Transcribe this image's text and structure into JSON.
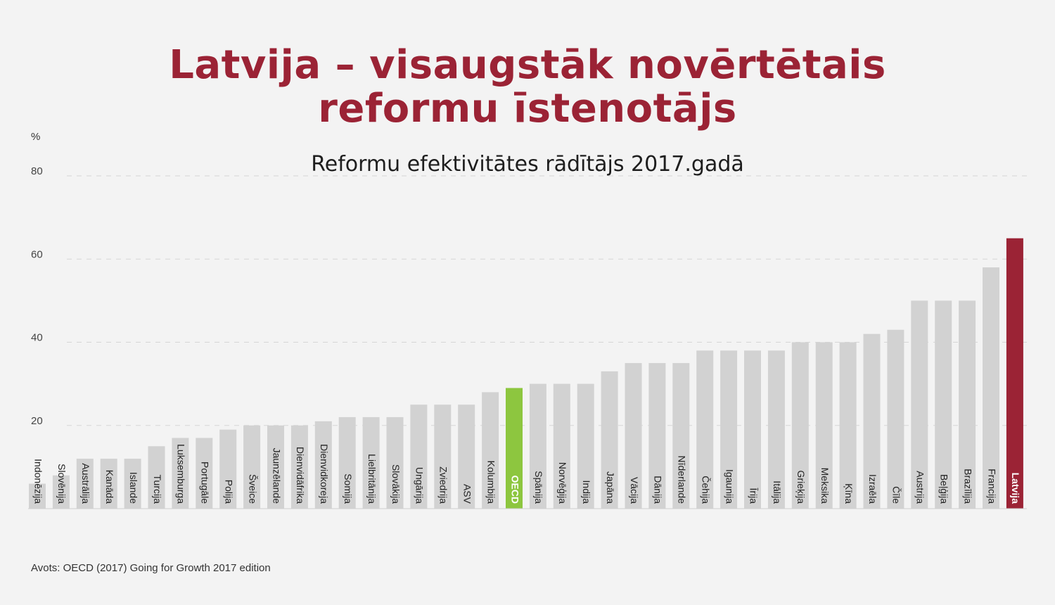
{
  "header": {
    "title_line1": "Latvija – visaugstāk novērtētais",
    "title_line2": "reformu īstenotājs"
  },
  "footer": {
    "source": "Avots: OECD (2017) Going for Growth 2017 edition"
  },
  "colors": {
    "bar_default": "#d2d2d2",
    "bar_oecd": "#8dc63f",
    "bar_latvia": "#9b2335",
    "title": "#9b2335",
    "label_on_colored": "#ffffff",
    "label_default": "#222222"
  },
  "chart_data": {
    "type": "bar",
    "title": "Reformu efektivitātes rādītājs 2017.gadā",
    "ylabel": "%",
    "xlabel": "",
    "ylim": [
      0,
      80
    ],
    "yticks": [
      20,
      40,
      60,
      80
    ],
    "grid": true,
    "legend": "none",
    "categories": [
      "Indonēzija",
      "Slovēnija",
      "Austrālija",
      "Kanāda",
      "Islande",
      "Turcija",
      "Luksemburga",
      "Portugāle",
      "Polija",
      "Šveice",
      "Jaunzēlande",
      "Dienvidāfrika",
      "Dienvidkoreja",
      "Somija",
      "Lielbritānija",
      "Slovākija",
      "Ungārija",
      "Zviedrija",
      "ASV",
      "Kolumbija",
      "OECD",
      "Spānija",
      "Norvēģija",
      "Indija",
      "Japāna",
      "Vācija",
      "Dānija",
      "Nīderlande",
      "Čehija",
      "Igaunija",
      "Īrija",
      "Itālija",
      "Grieķija",
      "Meksika",
      "Ķīna",
      "Izraēla",
      "Čīle",
      "Austrija",
      "Beļģija",
      "Brazīlija",
      "Francija",
      "Latvija"
    ],
    "values": [
      6,
      8,
      12,
      12,
      12,
      15,
      17,
      17,
      19,
      20,
      20,
      20,
      21,
      22,
      22,
      22,
      25,
      25,
      25,
      28,
      29,
      30,
      30,
      30,
      33,
      35,
      35,
      35,
      38,
      38,
      38,
      38,
      40,
      40,
      40,
      42,
      43,
      50,
      50,
      50,
      58,
      65
    ],
    "highlights": {
      "OECD": "bar_oecd",
      "Latvija": "bar_latvia"
    }
  }
}
